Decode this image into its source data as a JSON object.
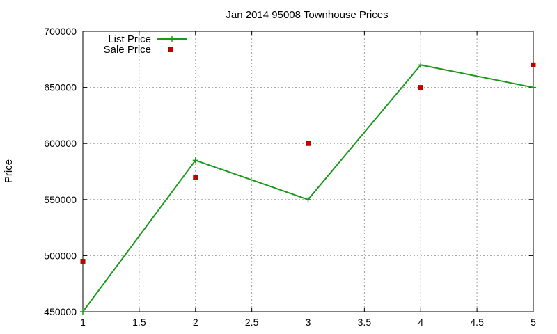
{
  "chart_data": {
    "type": "line",
    "title": "Jan 2014 95008 Townhouse Prices",
    "xlabel": "",
    "ylabel": "Price",
    "xlim": [
      1,
      5
    ],
    "ylim": [
      450000,
      700000
    ],
    "x_ticks": [
      "1",
      "1.5",
      "2",
      "2.5",
      "3",
      "3.5",
      "4",
      "4.5",
      "5"
    ],
    "y_ticks": [
      "450000",
      "500000",
      "550000",
      "600000",
      "650000",
      "700000"
    ],
    "grid": true,
    "legend_position": "top-left",
    "series": [
      {
        "name": "List Price",
        "style": "linespoints",
        "marker": "plus",
        "color": "#1a9a1a",
        "x": [
          1,
          2,
          3,
          4,
          5
        ],
        "y": [
          450000,
          585000,
          550000,
          670000,
          650000
        ]
      },
      {
        "name": "Sale Price",
        "style": "points",
        "marker": "square",
        "color": "#c00000",
        "x": [
          1,
          2,
          3,
          4,
          5
        ],
        "y": [
          495000,
          570000,
          600000,
          650000,
          670000
        ]
      }
    ]
  }
}
